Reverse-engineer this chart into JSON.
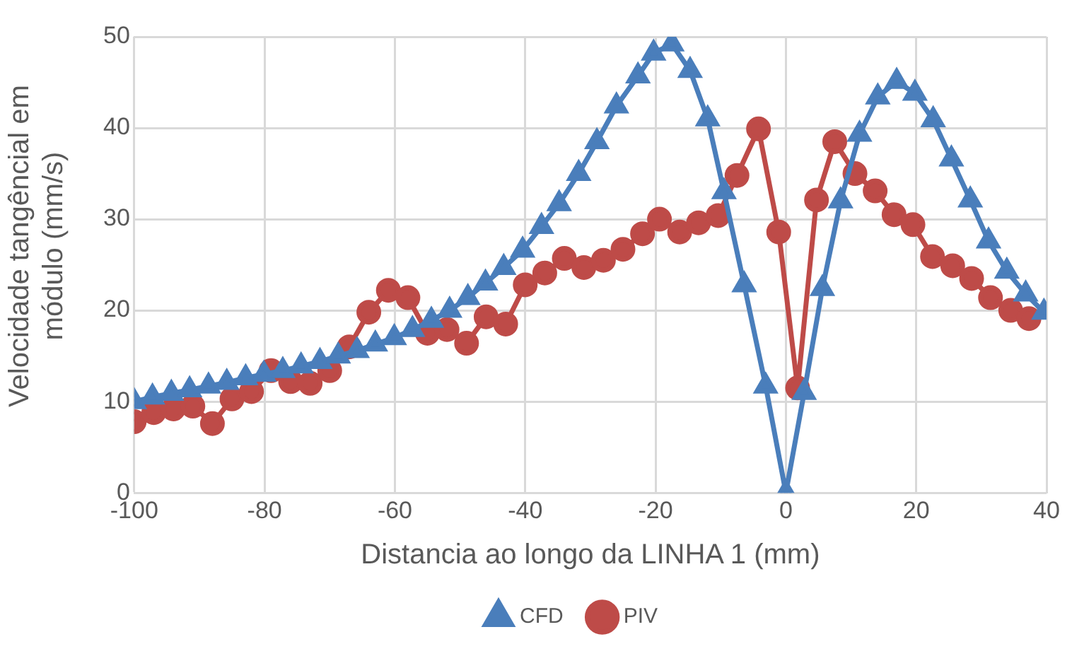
{
  "chart_data": {
    "type": "line",
    "xlabel": "Distancia ao longo da LINHA 1 (mm)",
    "ylabel": "Velocidade tangêncial em módulo (mm/s)",
    "xlim": [
      -100,
      40
    ],
    "xticks": [
      -100,
      -80,
      -60,
      -40,
      -20,
      0,
      20,
      40
    ],
    "ylim": [
      0,
      50
    ],
    "yticks": [
      0,
      10,
      20,
      30,
      40,
      50
    ],
    "grid": true,
    "legend": "bottom",
    "series": [
      {
        "name": "CFD",
        "color": "#4a7ebb",
        "marker": "triangle",
        "x": [
          -100,
          -97.2,
          -94.3,
          -91.5,
          -88.6,
          -85.8,
          -82.9,
          -80.1,
          -77.2,
          -74.4,
          -71.5,
          -68.7,
          -65.8,
          -63,
          -60.1,
          -57.3,
          -54.4,
          -51.6,
          -48.8,
          -46.1,
          -43.3,
          -40.4,
          -37.5,
          -34.8,
          -31.8,
          -29,
          -26,
          -22.7,
          -20.3,
          -17.5,
          -14.7,
          -12,
          -9.5,
          -6.4,
          -3.1,
          0,
          2.8,
          5.6,
          8.4,
          11.3,
          14.1,
          17,
          19.8,
          22.6,
          25.4,
          28.3,
          31.1,
          33.9,
          36.8,
          39.6
        ],
        "values": [
          10,
          10.5,
          10.9,
          11.3,
          11.7,
          12.1,
          12.6,
          13,
          13.4,
          13.9,
          14.4,
          15,
          15.6,
          16.3,
          17,
          17.9,
          18.9,
          20,
          21.4,
          23,
          24.7,
          26.6,
          29.2,
          31.7,
          35,
          38.5,
          42.4,
          45.7,
          48.2,
          49.2,
          46.3,
          41,
          33,
          22.8,
          11.7,
          0,
          11,
          22.4,
          32,
          39.3,
          43.4,
          45.1,
          43.8,
          40.9,
          36.6,
          32.1,
          27.6,
          24.3,
          21.8,
          19.8
        ]
      },
      {
        "name": "PIV",
        "color": "#be4b48",
        "marker": "circle",
        "x": [
          -100,
          -97,
          -94,
          -91,
          -88,
          -85,
          -82,
          -79,
          -76,
          -73,
          -70,
          -67,
          -64,
          -61,
          -58,
          -55,
          -52,
          -49,
          -46,
          -43,
          -40,
          -37,
          -34,
          -31,
          -28,
          -25,
          -22,
          -19.4,
          -16.3,
          -13.4,
          -10.4,
          -7.5,
          -4.2,
          -1.1,
          1.8,
          4.7,
          7.5,
          10.6,
          13.7,
          16.6,
          19.5,
          22.5,
          25.6,
          28.5,
          31.4,
          34.5,
          37.3
        ],
        "values": [
          7.8,
          8.8,
          9.2,
          9.5,
          7.6,
          10.3,
          11.1,
          13.4,
          12.2,
          12,
          13.4,
          16,
          19.8,
          22.2,
          21.4,
          17.5,
          17.9,
          16.4,
          19.3,
          18.5,
          22.8,
          24.1,
          25.7,
          24.7,
          25.5,
          26.7,
          28.4,
          30,
          28.6,
          29.6,
          30.4,
          34.8,
          39.9,
          28.6,
          11.5,
          32.1,
          38.5,
          35,
          33.1,
          30.5,
          29.4,
          25.9,
          24.9,
          23.5,
          21.4,
          20,
          19.1
        ]
      }
    ]
  }
}
